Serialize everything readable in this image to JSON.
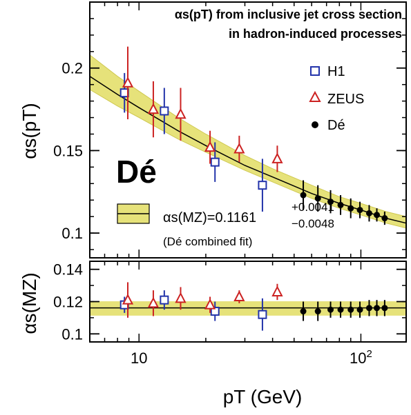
{
  "chart_data": [
    {
      "type": "scatter",
      "panel": "top",
      "title_line1": "αs(pT) from inclusive jet cross section",
      "title_line2": "in hadron-induced processes",
      "ylabel": "αs(pT)",
      "xlabel": "",
      "x_scale": "log",
      "xlim": [
        6.0,
        160.0
      ],
      "ylim": [
        0.085,
        0.24
      ],
      "y_ticks": [
        "0.1",
        "0.15",
        "0.2"
      ],
      "y_tick_values": [
        0.1,
        0.15,
        0.2
      ],
      "experiment_label": "Dé",
      "fit_label": "αs(MZ)=0.1161",
      "fit_err_up": "+0.0041",
      "fit_err_down": "−0.0048",
      "fit_note": "(Dé combined fit)",
      "legend_position": "top-right",
      "series": [
        {
          "name": "H1",
          "marker": "open-square",
          "color": "#2233aa",
          "points": [
            {
              "x": 8.6,
              "y": 0.185,
              "err": 0.012
            },
            {
              "x": 13.0,
              "y": 0.174,
              "err": 0.014
            },
            {
              "x": 22.0,
              "y": 0.143,
              "err": 0.012
            },
            {
              "x": 36.0,
              "y": 0.129,
              "err": 0.016
            }
          ]
        },
        {
          "name": "ZEUS",
          "marker": "open-triangle",
          "color": "#cc2222",
          "points": [
            {
              "x": 8.9,
              "y": 0.191,
              "err": 0.022
            },
            {
              "x": 11.6,
              "y": 0.175,
              "err": 0.017
            },
            {
              "x": 15.4,
              "y": 0.172,
              "err": 0.016
            },
            {
              "x": 20.9,
              "y": 0.152,
              "err": 0.01
            },
            {
              "x": 28.3,
              "y": 0.151,
              "err": 0.008
            },
            {
              "x": 42.0,
              "y": 0.145,
              "err": 0.008
            }
          ]
        },
        {
          "name": "Dé",
          "marker": "filled-circle",
          "color": "#000000",
          "points": [
            {
              "x": 55,
              "y": 0.123,
              "err": 0.009
            },
            {
              "x": 64,
              "y": 0.121,
              "err": 0.008
            },
            {
              "x": 73,
              "y": 0.119,
              "err": 0.007
            },
            {
              "x": 81,
              "y": 0.117,
              "err": 0.006
            },
            {
              "x": 90,
              "y": 0.115,
              "err": 0.006
            },
            {
              "x": 99,
              "y": 0.114,
              "err": 0.005
            },
            {
              "x": 109,
              "y": 0.112,
              "err": 0.005
            },
            {
              "x": 118,
              "y": 0.111,
              "err": 0.004
            },
            {
              "x": 128,
              "y": 0.109,
              "err": 0.004
            }
          ]
        }
      ],
      "fit_curve": [
        {
          "x": 6,
          "y": 0.195,
          "lo": 0.187,
          "hi": 0.208
        },
        {
          "x": 8,
          "y": 0.184,
          "lo": 0.177,
          "hi": 0.195
        },
        {
          "x": 10,
          "y": 0.176,
          "lo": 0.17,
          "hi": 0.186
        },
        {
          "x": 15,
          "y": 0.162,
          "lo": 0.157,
          "hi": 0.17
        },
        {
          "x": 20,
          "y": 0.153,
          "lo": 0.149,
          "hi": 0.16
        },
        {
          "x": 30,
          "y": 0.141,
          "lo": 0.138,
          "hi": 0.147
        },
        {
          "x": 40,
          "y": 0.134,
          "lo": 0.131,
          "hi": 0.139
        },
        {
          "x": 60,
          "y": 0.124,
          "lo": 0.121,
          "hi": 0.129
        },
        {
          "x": 80,
          "y": 0.118,
          "lo": 0.115,
          "hi": 0.122
        },
        {
          "x": 100,
          "y": 0.114,
          "lo": 0.111,
          "hi": 0.118
        },
        {
          "x": 130,
          "y": 0.109,
          "lo": 0.106,
          "hi": 0.113
        },
        {
          "x": 160,
          "y": 0.106,
          "lo": 0.103,
          "hi": 0.11
        }
      ]
    },
    {
      "type": "scatter",
      "panel": "bottom",
      "ylabel": "αs(MZ)",
      "xlabel": "pT  (GeV)",
      "x_scale": "log",
      "xlim": [
        6.0,
        160.0
      ],
      "ylim": [
        0.095,
        0.145
      ],
      "x_ticks": [
        "10",
        "10²"
      ],
      "x_tick_values": [
        10,
        100
      ],
      "y_ticks": [
        "0.1",
        "0.12",
        "0.14"
      ],
      "y_tick_values": [
        0.1,
        0.12,
        0.14
      ],
      "band": {
        "central": 0.1161,
        "lo": 0.1113,
        "hi": 0.1202
      },
      "series": [
        {
          "name": "H1",
          "marker": "open-square",
          "color": "#2233aa",
          "points": [
            {
              "x": 8.6,
              "y": 0.118,
              "err": 0.005
            },
            {
              "x": 13.0,
              "y": 0.121,
              "err": 0.006
            },
            {
              "x": 22.0,
              "y": 0.114,
              "err": 0.006
            },
            {
              "x": 36.0,
              "y": 0.112,
              "err": 0.01
            }
          ]
        },
        {
          "name": "ZEUS",
          "marker": "open-triangle",
          "color": "#cc2222",
          "points": [
            {
              "x": 8.9,
              "y": 0.121,
              "err": 0.011
            },
            {
              "x": 11.6,
              "y": 0.119,
              "err": 0.008
            },
            {
              "x": 15.4,
              "y": 0.122,
              "err": 0.007
            },
            {
              "x": 20.9,
              "y": 0.118,
              "err": 0.005
            },
            {
              "x": 28.3,
              "y": 0.123,
              "err": 0.004
            },
            {
              "x": 42.0,
              "y": 0.126,
              "err": 0.005
            }
          ]
        },
        {
          "name": "Dé",
          "marker": "filled-circle",
          "color": "#000000",
          "points": [
            {
              "x": 55,
              "y": 0.114,
              "err": 0.006
            },
            {
              "x": 64,
              "y": 0.114,
              "err": 0.006
            },
            {
              "x": 73,
              "y": 0.115,
              "err": 0.005
            },
            {
              "x": 81,
              "y": 0.115,
              "err": 0.005
            },
            {
              "x": 90,
              "y": 0.115,
              "err": 0.005
            },
            {
              "x": 99,
              "y": 0.115,
              "err": 0.005
            },
            {
              "x": 109,
              "y": 0.116,
              "err": 0.005
            },
            {
              "x": 118,
              "y": 0.116,
              "err": 0.005
            },
            {
              "x": 128,
              "y": 0.116,
              "err": 0.005
            }
          ]
        }
      ]
    }
  ],
  "colors": {
    "band_fill": "#e6e27a",
    "band_edge": "#cfc850",
    "h1": "#2233aa",
    "zeus": "#cc2222",
    "d0": "#000000"
  }
}
